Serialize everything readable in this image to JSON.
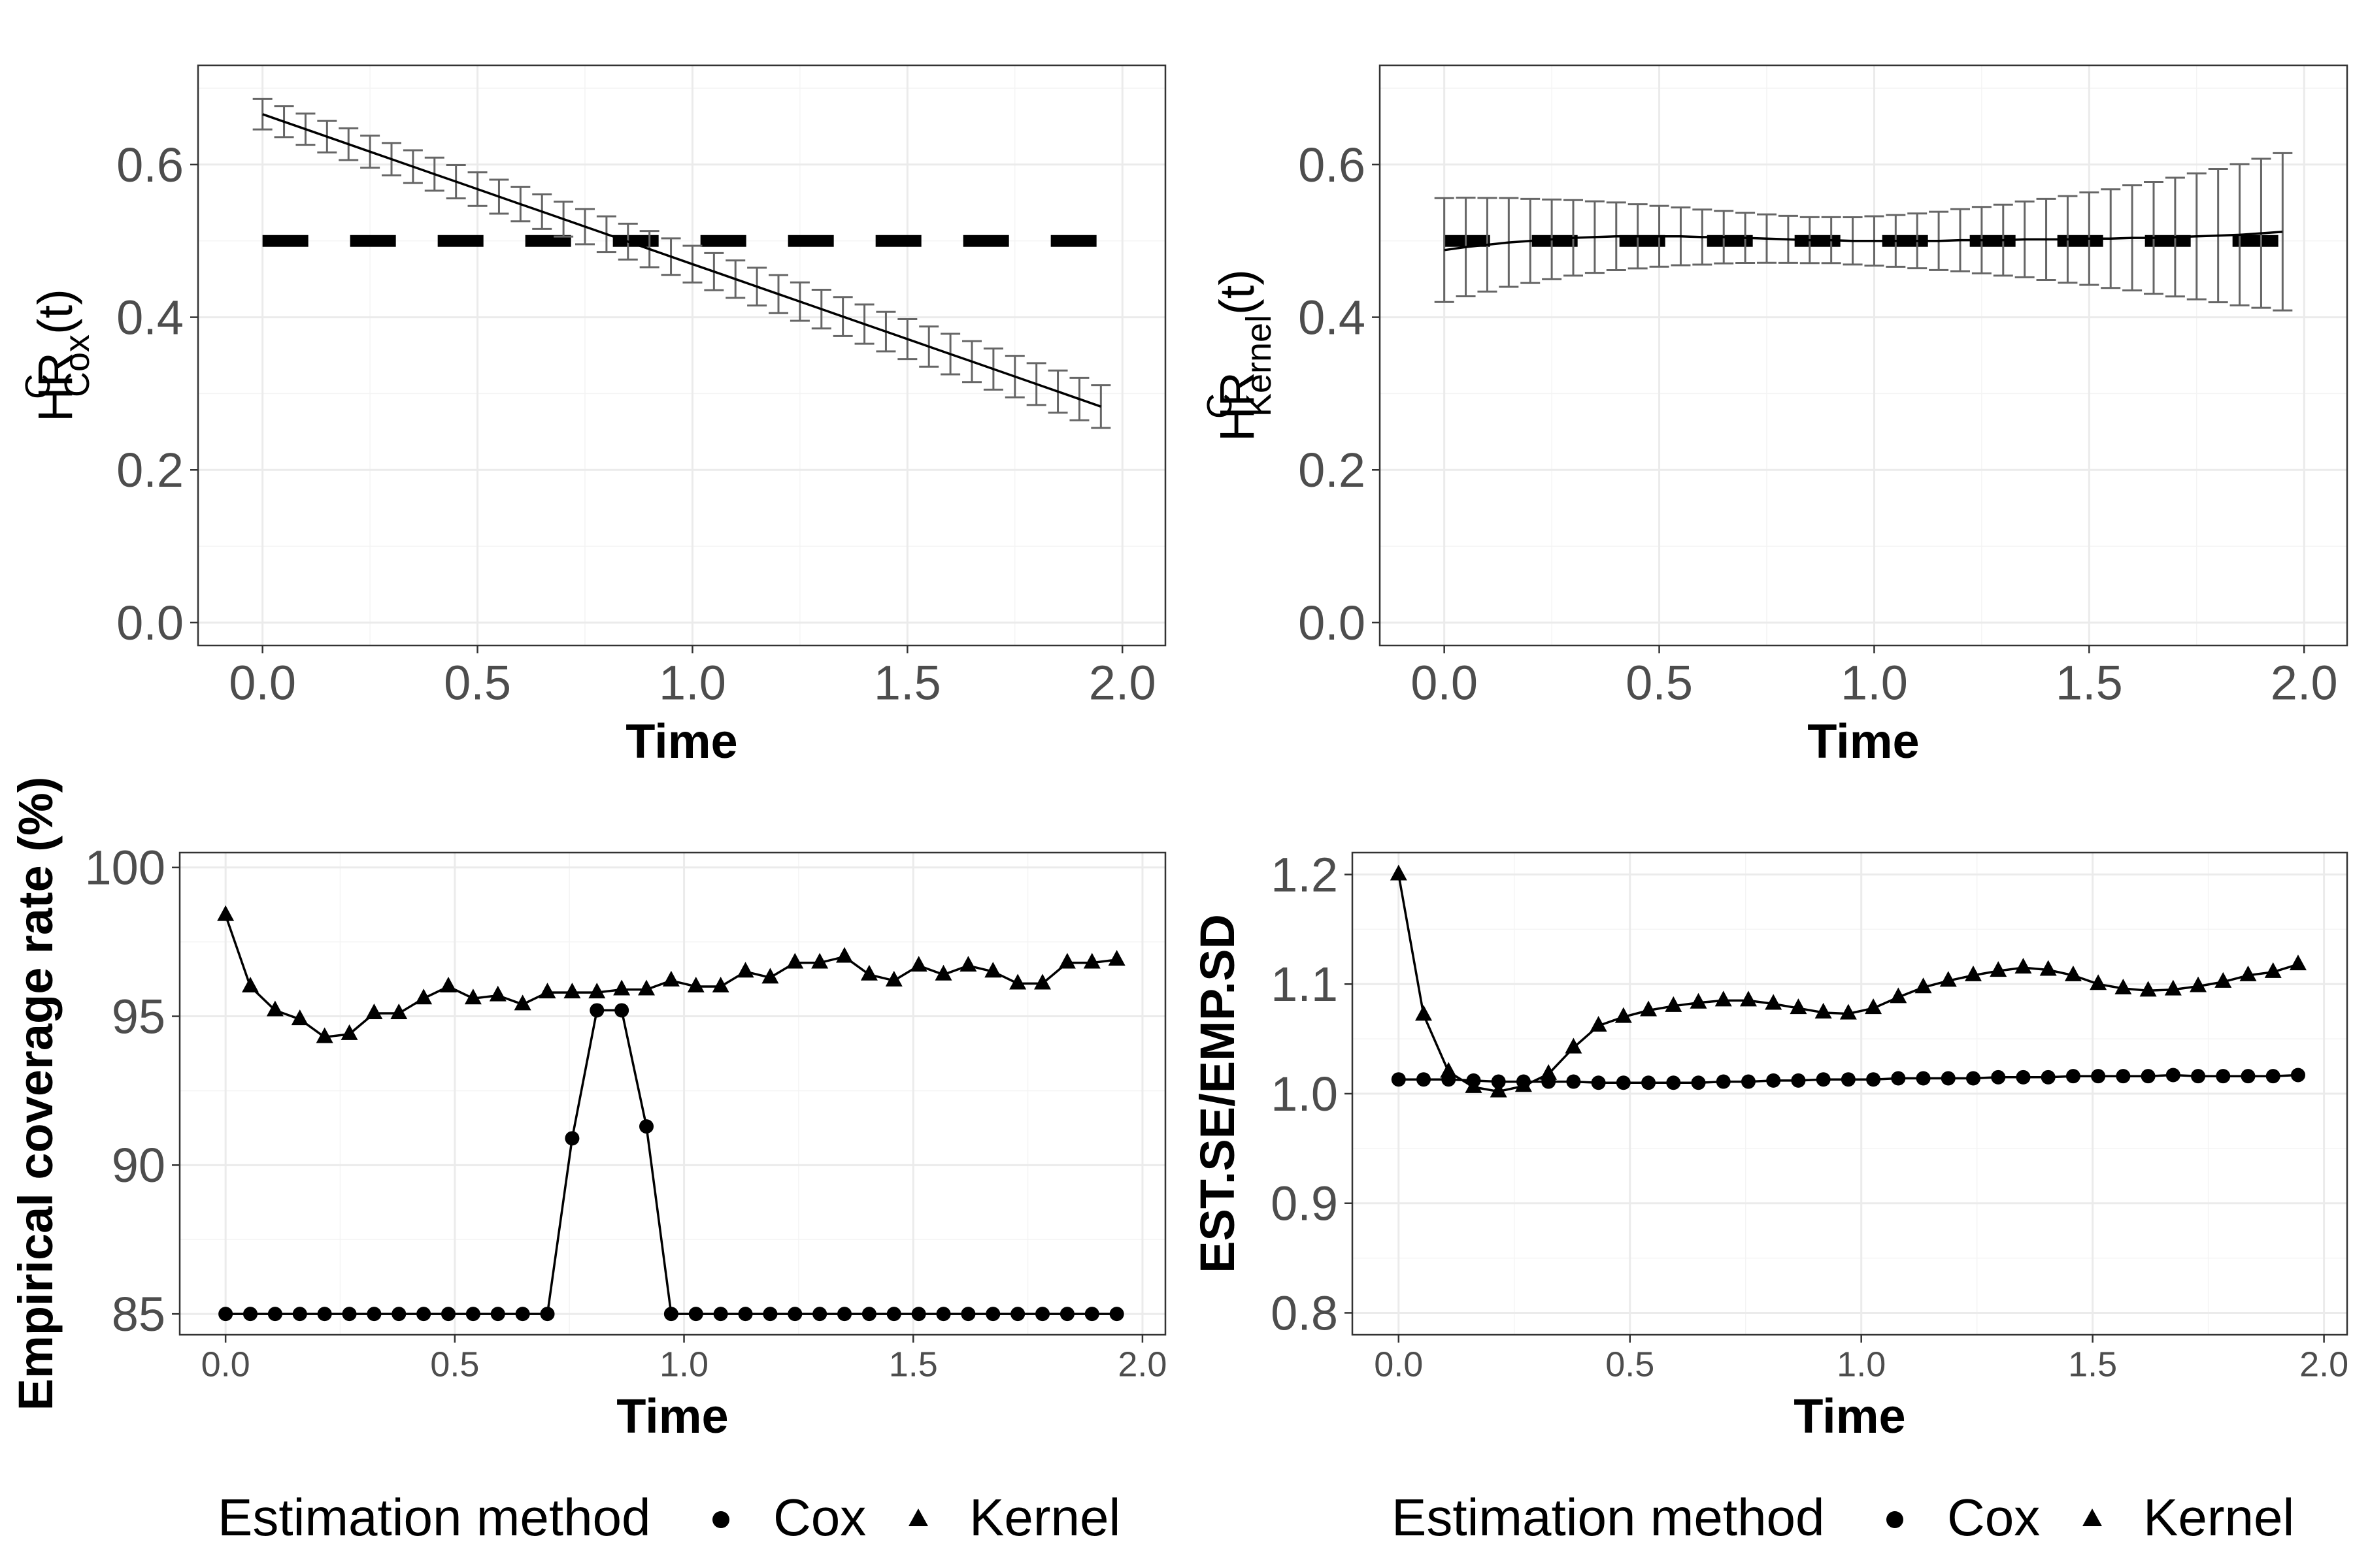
{
  "colors": {
    "background": "#ffffff",
    "grid": "#ebebeb",
    "border": "#333333",
    "series": "#000000",
    "errorbar": "#666666"
  },
  "chart_data": [
    {
      "id": "hr_cox",
      "type": "line",
      "title": "",
      "xlabel": "Time",
      "ylabel": {
        "base": "HR",
        "sup": "C",
        "sub": "Cox",
        "suffix": "(t)"
      },
      "xlim": [
        -0.15,
        2.1
      ],
      "ylim": [
        -0.03,
        0.73
      ],
      "x_ticks": [
        0.0,
        0.5,
        1.0,
        1.5,
        2.0
      ],
      "x_tick_labels": [
        "0.0",
        "0.5",
        "1.0",
        "1.5",
        "2.0"
      ],
      "y_ticks": [
        0.0,
        0.2,
        0.4,
        0.6
      ],
      "y_tick_labels": [
        "0.0",
        "0.2",
        "0.4",
        "0.6"
      ],
      "grid": true,
      "reference_line": {
        "style": "dashed",
        "y": 0.5
      },
      "series": [
        {
          "name": "estimate",
          "x_start": 0.0,
          "x_step": 0.05,
          "n": 40,
          "y_start": 0.666,
          "y_end": 0.283,
          "se_start": 0.02,
          "se_end": 0.028
        }
      ]
    },
    {
      "id": "hr_kernel",
      "type": "line",
      "title": "",
      "xlabel": "Time",
      "ylabel": {
        "base": "HR",
        "sup": "C",
        "sub": "Kernel",
        "suffix": "(t)"
      },
      "xlim": [
        -0.15,
        2.1
      ],
      "ylim": [
        -0.03,
        0.73
      ],
      "x_ticks": [
        0.0,
        0.5,
        1.0,
        1.5,
        2.0
      ],
      "x_tick_labels": [
        "0.0",
        "0.5",
        "1.0",
        "1.5",
        "2.0"
      ],
      "y_ticks": [
        0.0,
        0.2,
        0.4,
        0.6
      ],
      "y_tick_labels": [
        "0.0",
        "0.2",
        "0.4",
        "0.6"
      ],
      "grid": true,
      "reference_line": {
        "style": "dashed",
        "y": 0.5
      },
      "series": [
        {
          "name": "estimate",
          "x": [
            0.0,
            0.05,
            0.1,
            0.15,
            0.2,
            0.25,
            0.3,
            0.35,
            0.4,
            0.45,
            0.5,
            0.55,
            0.6,
            0.65,
            0.7,
            0.75,
            0.8,
            0.85,
            0.9,
            0.95,
            1.0,
            1.05,
            1.1,
            1.15,
            1.2,
            1.25,
            1.3,
            1.35,
            1.4,
            1.45,
            1.5,
            1.55,
            1.6,
            1.65,
            1.7,
            1.75,
            1.8,
            1.85,
            1.9,
            1.95
          ],
          "y": [
            0.488,
            0.492,
            0.495,
            0.498,
            0.5,
            0.502,
            0.504,
            0.505,
            0.506,
            0.506,
            0.506,
            0.506,
            0.505,
            0.505,
            0.504,
            0.503,
            0.502,
            0.501,
            0.501,
            0.5,
            0.5,
            0.5,
            0.5,
            0.5,
            0.501,
            0.501,
            0.501,
            0.502,
            0.502,
            0.502,
            0.503,
            0.503,
            0.504,
            0.504,
            0.505,
            0.506,
            0.507,
            0.508,
            0.51,
            0.512
          ],
          "se_start": 0.068,
          "se_mid": 0.03,
          "se_end": 0.103
        }
      ]
    },
    {
      "id": "coverage",
      "type": "line",
      "title": "",
      "xlabel": "Time",
      "ylabel": "Empirical coverage rate (%)",
      "xlim": [
        -0.1,
        2.05
      ],
      "ylim": [
        84.3,
        100.5
      ],
      "x_ticks": [
        0.0,
        0.5,
        1.0,
        1.5,
        2.0
      ],
      "x_tick_labels": [
        "0.0",
        "0.5",
        "1.0",
        "1.5",
        "2.0"
      ],
      "y_ticks": [
        85,
        90,
        95,
        100
      ],
      "y_tick_labels": [
        "85",
        "90",
        "95",
        "100"
      ],
      "grid": true,
      "series": [
        {
          "name": "Cox",
          "marker": "circle",
          "x": [
            0.0,
            0.054,
            0.108,
            0.162,
            0.216,
            0.27,
            0.324,
            0.378,
            0.432,
            0.486,
            0.54,
            0.594,
            0.648,
            0.702,
            0.756,
            0.81,
            0.864,
            0.918,
            0.972,
            1.026,
            1.08,
            1.134,
            1.188,
            1.242,
            1.296,
            1.35,
            1.404,
            1.458,
            1.512,
            1.566,
            1.62,
            1.674,
            1.728,
            1.782,
            1.836,
            1.89,
            1.944
          ],
          "y": [
            85.0,
            85.0,
            85.0,
            85.0,
            85.0,
            85.0,
            85.0,
            85.0,
            85.0,
            85.0,
            85.0,
            85.0,
            85.0,
            85.0,
            90.9,
            95.2,
            95.2,
            91.3,
            85.0,
            85.0,
            85.0,
            85.0,
            85.0,
            85.0,
            85.0,
            85.0,
            85.0,
            85.0,
            85.0,
            85.0,
            85.0,
            85.0,
            85.0,
            85.0,
            85.0,
            85.0,
            85.0
          ]
        },
        {
          "name": "Kernel",
          "marker": "triangle",
          "x": [
            0.0,
            0.054,
            0.108,
            0.162,
            0.216,
            0.27,
            0.324,
            0.378,
            0.432,
            0.486,
            0.54,
            0.594,
            0.648,
            0.702,
            0.756,
            0.81,
            0.864,
            0.918,
            0.972,
            1.026,
            1.08,
            1.134,
            1.188,
            1.242,
            1.296,
            1.35,
            1.404,
            1.458,
            1.512,
            1.566,
            1.62,
            1.674,
            1.728,
            1.782,
            1.836,
            1.89,
            1.944
          ],
          "y": [
            98.4,
            96.0,
            95.2,
            94.9,
            94.3,
            94.4,
            95.1,
            95.1,
            95.6,
            96.0,
            95.6,
            95.7,
            95.4,
            95.8,
            95.8,
            95.8,
            95.9,
            95.9,
            96.2,
            96.0,
            96.0,
            96.5,
            96.3,
            96.8,
            96.8,
            97.0,
            96.4,
            96.2,
            96.7,
            96.4,
            96.7,
            96.5,
            96.1,
            96.1,
            96.8,
            96.8,
            96.9
          ]
        }
      ]
    },
    {
      "id": "se_ratio",
      "type": "line",
      "title": "",
      "xlabel": "Time",
      "ylabel": "EST.SE/EMP.SD",
      "xlim": [
        -0.1,
        2.05
      ],
      "ylim": [
        0.78,
        1.22
      ],
      "x_ticks": [
        0.0,
        0.5,
        1.0,
        1.5,
        2.0
      ],
      "x_tick_labels": [
        "0.0",
        "0.5",
        "1.0",
        "1.5",
        "2.0"
      ],
      "y_ticks": [
        0.8,
        0.9,
        1.0,
        1.1,
        1.2
      ],
      "y_tick_labels": [
        "0.8",
        "0.9",
        "1.0",
        "1.1",
        "1.2"
      ],
      "grid": true,
      "series": [
        {
          "name": "Cox",
          "marker": "circle",
          "x": [
            0.0,
            0.054,
            0.108,
            0.162,
            0.216,
            0.27,
            0.324,
            0.378,
            0.432,
            0.486,
            0.54,
            0.594,
            0.648,
            0.702,
            0.756,
            0.81,
            0.864,
            0.918,
            0.972,
            1.026,
            1.08,
            1.134,
            1.188,
            1.242,
            1.296,
            1.35,
            1.404,
            1.458,
            1.512,
            1.566,
            1.62,
            1.674,
            1.728,
            1.782,
            1.836,
            1.89,
            1.944
          ],
          "y": [
            1.013,
            1.013,
            1.013,
            1.012,
            1.011,
            1.011,
            1.011,
            1.011,
            1.01,
            1.01,
            1.01,
            1.01,
            1.01,
            1.011,
            1.011,
            1.012,
            1.012,
            1.013,
            1.013,
            1.013,
            1.014,
            1.014,
            1.014,
            1.014,
            1.015,
            1.015,
            1.015,
            1.016,
            1.016,
            1.016,
            1.016,
            1.017,
            1.016,
            1.016,
            1.016,
            1.016,
            1.017
          ]
        },
        {
          "name": "Kernel",
          "marker": "triangle",
          "x": [
            0.0,
            0.054,
            0.108,
            0.162,
            0.216,
            0.27,
            0.324,
            0.378,
            0.432,
            0.486,
            0.54,
            0.594,
            0.648,
            0.702,
            0.756,
            0.81,
            0.864,
            0.918,
            0.972,
            1.026,
            1.08,
            1.134,
            1.188,
            1.242,
            1.296,
            1.35,
            1.404,
            1.458,
            1.512,
            1.566,
            1.62,
            1.674,
            1.728,
            1.782,
            1.836,
            1.89,
            1.944
          ],
          "y": [
            1.2,
            1.072,
            1.02,
            1.006,
            1.002,
            1.007,
            1.018,
            1.042,
            1.062,
            1.07,
            1.076,
            1.08,
            1.083,
            1.085,
            1.085,
            1.082,
            1.078,
            1.074,
            1.073,
            1.078,
            1.088,
            1.097,
            1.103,
            1.108,
            1.112,
            1.115,
            1.113,
            1.108,
            1.1,
            1.096,
            1.094,
            1.095,
            1.098,
            1.102,
            1.108,
            1.111,
            1.118
          ]
        }
      ]
    }
  ],
  "legends": [
    {
      "title": "Estimation method",
      "entries": [
        {
          "label": "Cox",
          "marker": "circle"
        },
        {
          "label": "Kernel",
          "marker": "triangle"
        }
      ]
    },
    {
      "title": "Estimation method",
      "entries": [
        {
          "label": "Cox",
          "marker": "circle"
        },
        {
          "label": "Kernel",
          "marker": "triangle"
        }
      ]
    }
  ]
}
